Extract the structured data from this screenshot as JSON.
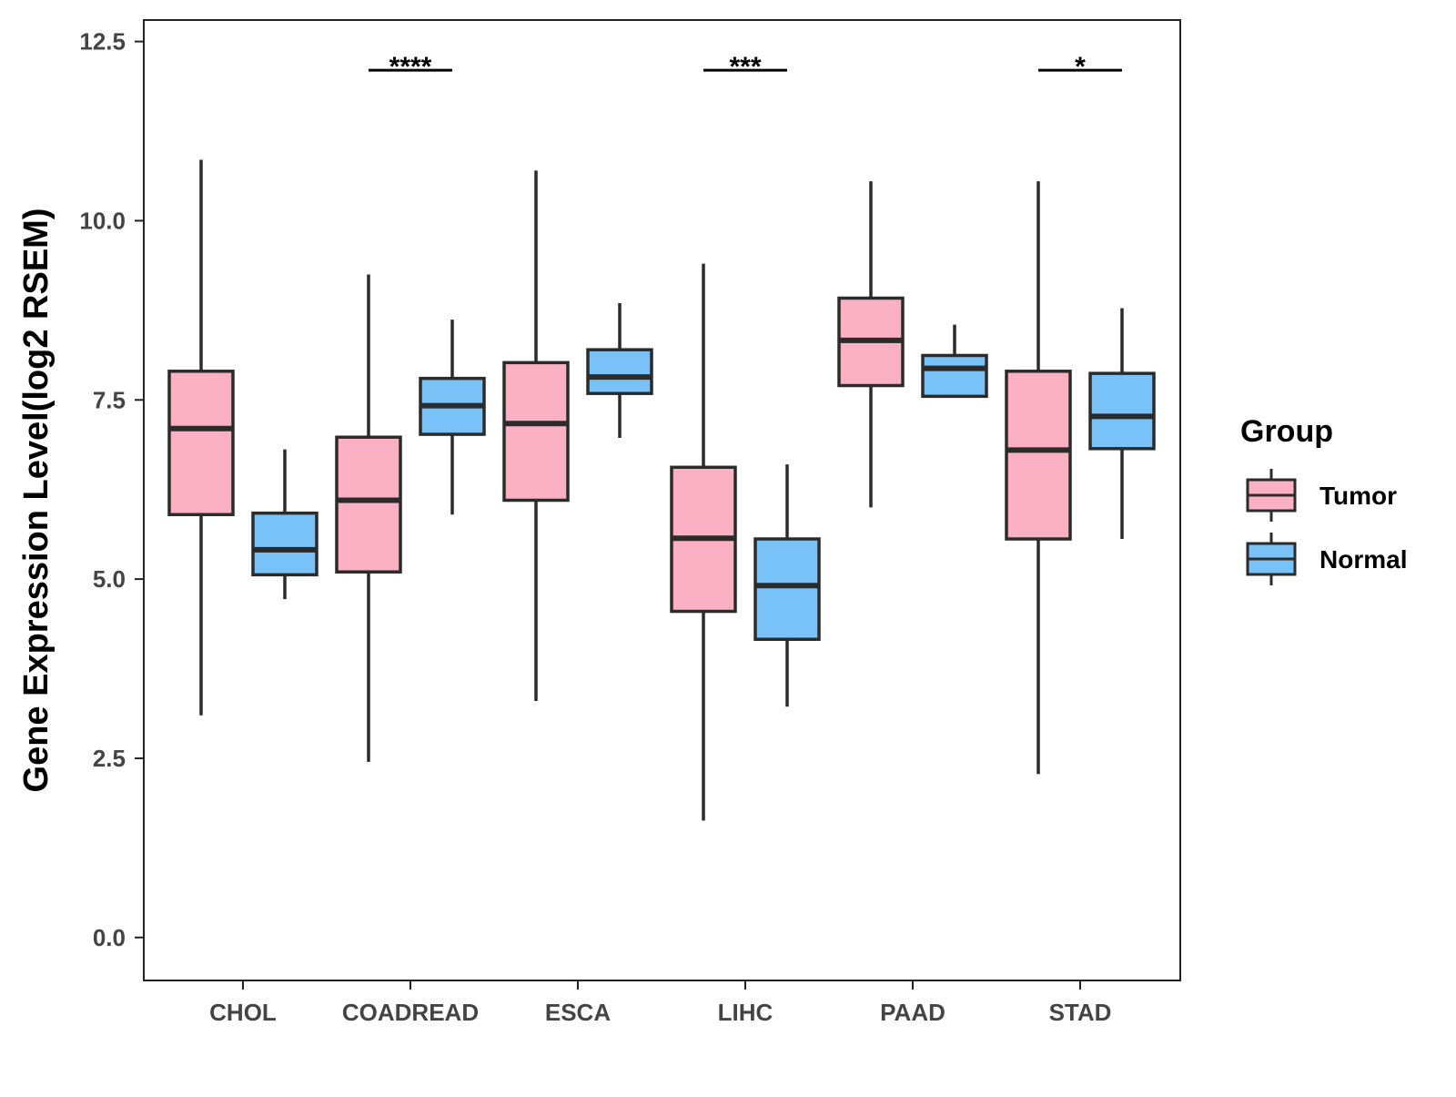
{
  "chart_data": {
    "type": "boxplot",
    "title": "",
    "xlabel": "",
    "ylabel": "Gene Expression Level(log2 RSEM)",
    "ylim": [
      -0.6,
      12.8
    ],
    "yticks": [
      0.0,
      2.5,
      5.0,
      7.5,
      10.0,
      12.5
    ],
    "ytick_labels": [
      "0.0",
      "2.5",
      "5.0",
      "7.5",
      "10.0",
      "12.5"
    ],
    "categories": [
      "CHOL",
      "COADREAD",
      "ESCA",
      "LIHC",
      "PAAD",
      "STAD"
    ],
    "legend": {
      "title": "Group",
      "position": "right",
      "entries": [
        "Tumor",
        "Normal"
      ]
    },
    "series": [
      {
        "name": "Tumor",
        "color": "#FBB0C3",
        "boxes": [
          {
            "category": "CHOL",
            "whisker_low": 3.1,
            "q1": 5.9,
            "median": 7.1,
            "q3": 7.9,
            "whisker_high": 10.85
          },
          {
            "category": "COADREAD",
            "whisker_low": 2.45,
            "q1": 5.1,
            "median": 6.1,
            "q3": 6.98,
            "whisker_high": 9.25
          },
          {
            "category": "ESCA",
            "whisker_low": 3.3,
            "q1": 6.1,
            "median": 7.17,
            "q3": 8.02,
            "whisker_high": 10.7
          },
          {
            "category": "LIHC",
            "whisker_low": 1.63,
            "q1": 4.55,
            "median": 5.57,
            "q3": 6.56,
            "whisker_high": 9.4
          },
          {
            "category": "PAAD",
            "whisker_low": 6.0,
            "q1": 7.7,
            "median": 8.33,
            "q3": 8.92,
            "whisker_high": 10.55
          },
          {
            "category": "STAD",
            "whisker_low": 2.28,
            "q1": 5.56,
            "median": 6.8,
            "q3": 7.9,
            "whisker_high": 10.55
          }
        ]
      },
      {
        "name": "Normal",
        "color": "#78C2F8",
        "boxes": [
          {
            "category": "CHOL",
            "whisker_low": 4.72,
            "q1": 5.06,
            "median": 5.41,
            "q3": 5.92,
            "whisker_high": 6.81
          },
          {
            "category": "COADREAD",
            "whisker_low": 5.9,
            "q1": 7.02,
            "median": 7.42,
            "q3": 7.8,
            "whisker_high": 8.62
          },
          {
            "category": "ESCA",
            "whisker_low": 6.97,
            "q1": 7.59,
            "median": 7.82,
            "q3": 8.2,
            "whisker_high": 8.85
          },
          {
            "category": "LIHC",
            "whisker_low": 3.22,
            "q1": 4.16,
            "median": 4.91,
            "q3": 5.56,
            "whisker_high": 6.6
          },
          {
            "category": "PAAD",
            "whisker_low": 7.55,
            "q1": 7.55,
            "median": 7.94,
            "q3": 8.12,
            "whisker_high": 8.55
          },
          {
            "category": "STAD",
            "whisker_low": 5.56,
            "q1": 6.82,
            "median": 7.27,
            "q3": 7.87,
            "whisker_high": 8.78
          }
        ]
      }
    ],
    "significance": [
      {
        "category": "COADREAD",
        "label": "****",
        "y": 12.1
      },
      {
        "category": "LIHC",
        "label": "***",
        "y": 12.1
      },
      {
        "category": "STAD",
        "label": "*",
        "y": 12.1
      }
    ]
  }
}
